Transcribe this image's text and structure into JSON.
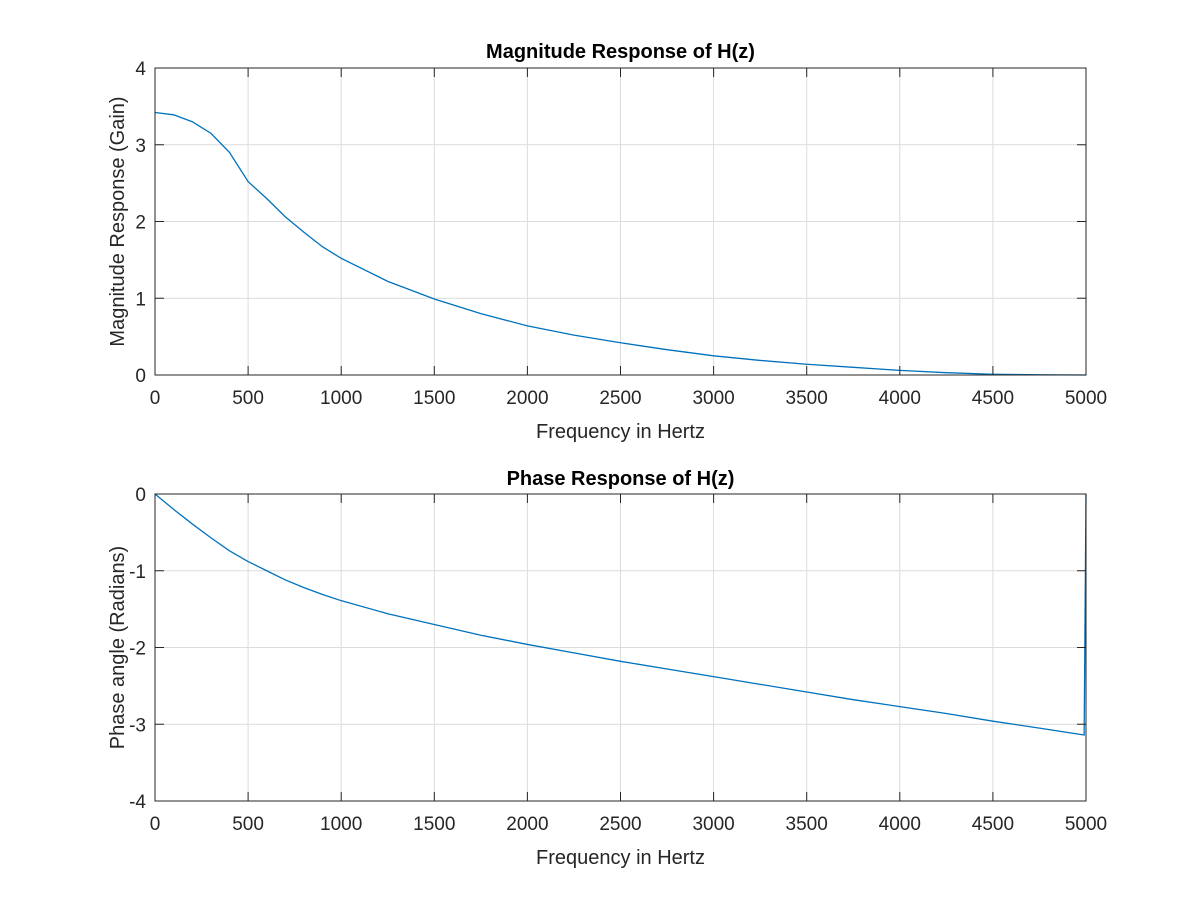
{
  "chart_data": [
    {
      "type": "line",
      "title": "Magnitude Response of H(z)",
      "xlabel": "Frequency in Hertz",
      "ylabel": "Magnitude Response (Gain)",
      "xlim": [
        0,
        5000
      ],
      "ylim": [
        0,
        4
      ],
      "xticks": [
        0,
        500,
        1000,
        1500,
        2000,
        2500,
        3000,
        3500,
        4000,
        4500,
        5000
      ],
      "yticks": [
        0,
        1,
        2,
        3,
        4
      ],
      "grid": true,
      "line_color": "#0072BD",
      "x": [
        0,
        100,
        200,
        300,
        400,
        500,
        600,
        700,
        800,
        900,
        1000,
        1250,
        1500,
        1750,
        2000,
        2250,
        2500,
        2750,
        3000,
        3250,
        3500,
        3750,
        4000,
        4250,
        4500,
        4750,
        5000
      ],
      "y": [
        3.42,
        3.39,
        3.3,
        3.15,
        2.9,
        2.52,
        2.3,
        2.06,
        1.86,
        1.67,
        1.52,
        1.22,
        0.99,
        0.8,
        0.64,
        0.52,
        0.42,
        0.33,
        0.25,
        0.19,
        0.14,
        0.1,
        0.06,
        0.03,
        0.01,
        0.003,
        0
      ]
    },
    {
      "type": "line",
      "title": "Phase Response of H(z)",
      "xlabel": "Frequency in Hertz",
      "ylabel": "Phase angle (Radians)",
      "xlim": [
        0,
        5000
      ],
      "ylim": [
        -4,
        0
      ],
      "xticks": [
        0,
        500,
        1000,
        1500,
        2000,
        2500,
        3000,
        3500,
        4000,
        4500,
        5000
      ],
      "yticks": [
        -4,
        -3,
        -2,
        -1,
        0
      ],
      "grid": true,
      "line_color": "#0072BD",
      "x": [
        0,
        100,
        200,
        300,
        400,
        500,
        600,
        700,
        800,
        900,
        1000,
        1250,
        1500,
        1750,
        2000,
        2250,
        2500,
        2750,
        3000,
        3250,
        3500,
        3750,
        4000,
        4250,
        4500,
        4750,
        4990,
        5000
      ],
      "y": [
        0,
        -0.2,
        -0.39,
        -0.57,
        -0.74,
        -0.88,
        -1.0,
        -1.12,
        -1.22,
        -1.31,
        -1.39,
        -1.56,
        -1.7,
        -1.84,
        -1.96,
        -2.07,
        -2.18,
        -2.28,
        -2.38,
        -2.48,
        -2.58,
        -2.68,
        -2.77,
        -2.86,
        -2.96,
        -3.05,
        -3.14,
        0
      ]
    }
  ]
}
